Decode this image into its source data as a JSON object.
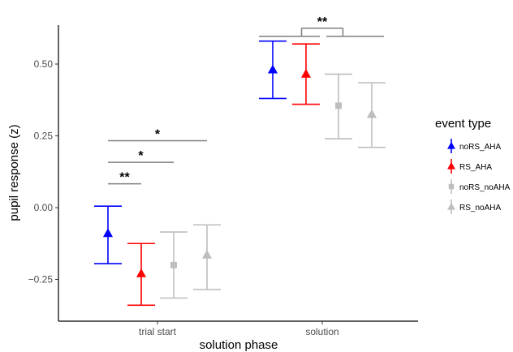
{
  "chart_data": {
    "type": "scatter",
    "xlabel": "solution phase",
    "ylabel": "pupil response (z)",
    "ylim": [
      -0.4,
      0.65
    ],
    "yticks": [
      -0.25,
      0.0,
      0.25,
      0.5
    ],
    "ytick_labels": [
      "−0.25",
      "0.00",
      "0.25",
      "0.50"
    ],
    "categories": [
      "trial start",
      "solution"
    ],
    "grid": false,
    "legend": {
      "title": "event  type",
      "placement": "right"
    },
    "series": [
      {
        "name": "noRS_AHA",
        "color": "#0000ff",
        "marker": "triangle",
        "values": [
          -0.09,
          0.48
        ],
        "lower": [
          -0.195,
          0.38
        ],
        "upper": [
          0.005,
          0.58
        ]
      },
      {
        "name": "RS_AHA",
        "color": "#ff0000",
        "marker": "triangle",
        "values": [
          -0.23,
          0.465
        ],
        "lower": [
          -0.34,
          0.36
        ],
        "upper": [
          -0.125,
          0.57
        ]
      },
      {
        "name": "noRS_noAHA",
        "color": "#bebebe",
        "marker": "square",
        "values": [
          -0.2,
          0.355
        ],
        "lower": [
          -0.315,
          0.24
        ],
        "upper": [
          -0.085,
          0.465
        ]
      },
      {
        "name": "RS_noAHA",
        "color": "#bebebe",
        "marker": "triangle",
        "values": [
          -0.165,
          0.325
        ],
        "lower": [
          -0.285,
          0.21
        ],
        "upper": [
          -0.06,
          0.435
        ]
      }
    ],
    "annotations": [
      {
        "text": "**",
        "group": "trial start",
        "from_series": 0,
        "to_series": 1,
        "y": 0.083
      },
      {
        "text": "*",
        "group": "trial start",
        "from_series": 0,
        "to_series": 2,
        "y": 0.158
      },
      {
        "text": "*",
        "group": "trial start",
        "from_series": 0,
        "to_series": 3,
        "y": 0.233
      },
      {
        "text": "**",
        "group": "solution",
        "bracket": "AHA vs noAHA",
        "y": 0.625
      }
    ]
  }
}
